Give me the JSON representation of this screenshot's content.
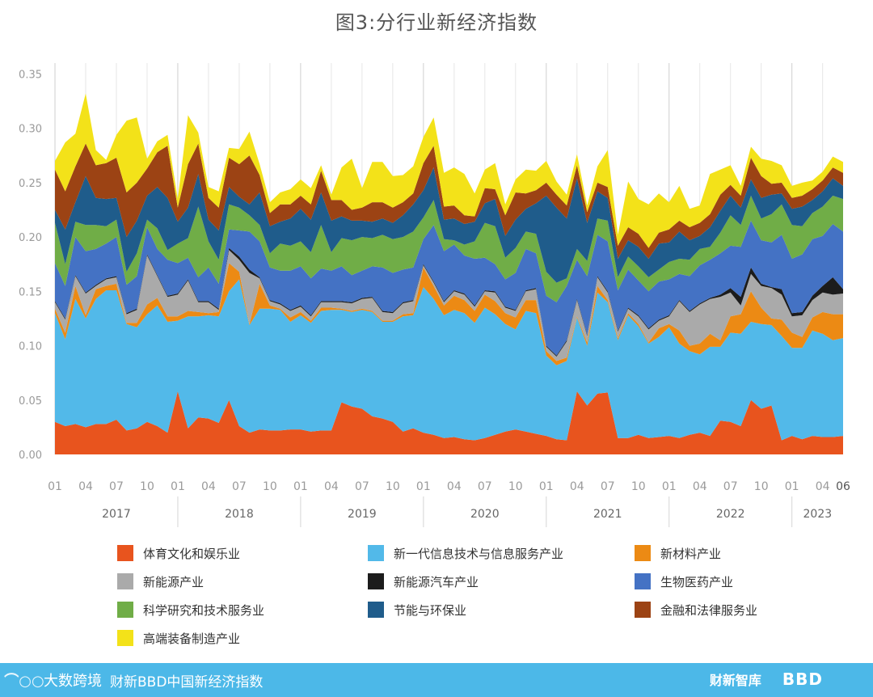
{
  "chart_data": {
    "type": "area",
    "stacked": true,
    "title": "图3:分行业新经济指数",
    "ylim": [
      0,
      0.36
    ],
    "yticks": [
      "0.00",
      "0.05",
      "0.10",
      "0.15",
      "0.20",
      "0.25",
      "0.30",
      "0.35"
    ],
    "grid": "vertical",
    "legend_position": "bottom",
    "x_start": "2017-01",
    "x_end": "2023-06",
    "month_tick_labels": [
      "01",
      "04",
      "07",
      "10",
      "01",
      "04",
      "07",
      "10",
      "01",
      "04",
      "07",
      "10",
      "01",
      "04",
      "07",
      "10",
      "01",
      "04",
      "07",
      "10",
      "01",
      "04",
      "07",
      "10",
      "01",
      "04",
      "06"
    ],
    "year_labels": [
      "2017",
      "2018",
      "2019",
      "2020",
      "2021",
      "2022",
      "2023"
    ],
    "series": [
      {
        "name": "体育文化和娱乐业",
        "color": "#E8541E",
        "values": [
          0.03,
          0.026,
          0.028,
          0.025,
          0.028,
          0.028,
          0.032,
          0.022,
          0.024,
          0.03,
          0.026,
          0.02,
          0.058,
          0.024,
          0.034,
          0.033,
          0.029,
          0.05,
          0.026,
          0.02,
          0.023,
          0.022,
          0.022,
          0.023,
          0.023,
          0.021,
          0.022,
          0.022,
          0.048,
          0.044,
          0.042,
          0.035,
          0.033,
          0.03,
          0.021,
          0.024,
          0.02,
          0.018,
          0.015,
          0.016,
          0.014,
          0.013,
          0.015,
          0.018,
          0.021,
          0.023,
          0.021,
          0.019,
          0.017,
          0.014,
          0.013,
          0.058,
          0.045,
          0.056,
          0.057,
          0.015,
          0.015,
          0.018,
          0.015,
          0.016,
          0.017,
          0.015,
          0.018,
          0.02,
          0.017,
          0.031,
          0.03,
          0.026,
          0.05,
          0.042,
          0.045,
          0.013,
          0.017,
          0.014,
          0.017,
          0.016,
          0.016,
          0.017
        ]
      },
      {
        "name": "新一代信息技术与信息服务产业",
        "color": "#52B9E9",
        "values": [
          0.1,
          0.08,
          0.115,
          0.1,
          0.115,
          0.123,
          0.119,
          0.098,
          0.093,
          0.099,
          0.111,
          0.102,
          0.065,
          0.103,
          0.093,
          0.095,
          0.098,
          0.1,
          0.135,
          0.099,
          0.111,
          0.112,
          0.111,
          0.099,
          0.105,
          0.1,
          0.11,
          0.111,
          0.085,
          0.087,
          0.091,
          0.096,
          0.089,
          0.092,
          0.106,
          0.104,
          0.134,
          0.125,
          0.113,
          0.117,
          0.116,
          0.108,
          0.12,
          0.111,
          0.099,
          0.092,
          0.111,
          0.111,
          0.074,
          0.068,
          0.073,
          0.068,
          0.055,
          0.093,
          0.083,
          0.09,
          0.113,
          0.1,
          0.087,
          0.092,
          0.1,
          0.087,
          0.077,
          0.072,
          0.082,
          0.068,
          0.082,
          0.085,
          0.072,
          0.078,
          0.074,
          0.096,
          0.081,
          0.084,
          0.097,
          0.095,
          0.089,
          0.09
        ]
      },
      {
        "name": "新材料产业",
        "color": "#EC8A14",
        "values": [
          0.004,
          0.006,
          0.012,
          0.003,
          0.009,
          0.004,
          0.006,
          0.001,
          0.004,
          0.009,
          0.007,
          0.005,
          0.004,
          0.005,
          0.004,
          0.002,
          0.004,
          0.026,
          0.007,
          0.001,
          0.023,
          0.003,
          0.001,
          0.004,
          0.003,
          0.002,
          0.003,
          0.002,
          0.001,
          0.001,
          0.001,
          0.001,
          0.001,
          0.001,
          0.002,
          0.002,
          0.018,
          0.012,
          0.009,
          0.013,
          0.012,
          0.011,
          0.012,
          0.012,
          0.01,
          0.011,
          0.01,
          0.012,
          0.004,
          0.004,
          0.003,
          0.001,
          0.003,
          0.006,
          0.002,
          0.002,
          0.002,
          0.002,
          0.001,
          0.008,
          0.003,
          0.012,
          0.005,
          0.01,
          0.012,
          0.006,
          0.015,
          0.018,
          0.028,
          0.015,
          0.006,
          0.015,
          0.014,
          0.01,
          0.012,
          0.02,
          0.024,
          0.022
        ]
      },
      {
        "name": "新能源产业",
        "color": "#AAAAAA",
        "values": [
          0.006,
          0.012,
          0.009,
          0.02,
          0.003,
          0.006,
          0.006,
          0.008,
          0.012,
          0.045,
          0.02,
          0.018,
          0.02,
          0.028,
          0.009,
          0.01,
          0.002,
          0.012,
          0.011,
          0.047,
          0.005,
          0.004,
          0.004,
          0.006,
          0.005,
          0.004,
          0.005,
          0.005,
          0.006,
          0.007,
          0.009,
          0.012,
          0.008,
          0.007,
          0.01,
          0.011,
          0.002,
          0.003,
          0.003,
          0.004,
          0.005,
          0.004,
          0.003,
          0.008,
          0.005,
          0.006,
          0.008,
          0.01,
          0.004,
          0.004,
          0.015,
          0.015,
          0.006,
          0.008,
          0.007,
          0.006,
          0.004,
          0.007,
          0.012,
          0.007,
          0.007,
          0.027,
          0.031,
          0.036,
          0.032,
          0.04,
          0.022,
          0.008,
          0.016,
          0.02,
          0.028,
          0.023,
          0.015,
          0.02,
          0.016,
          0.018,
          0.018,
          0.019
        ]
      },
      {
        "name": "新能源汽车产业",
        "color": "#1C1C1C",
        "values": [
          0.001,
          0.001,
          0.001,
          0.001,
          0.001,
          0.001,
          0.001,
          0.001,
          0.001,
          0.001,
          0.001,
          0.001,
          0.001,
          0.001,
          0.001,
          0.001,
          0.001,
          0.002,
          0.003,
          0.003,
          0.001,
          0.001,
          0.001,
          0.001,
          0.001,
          0.001,
          0.001,
          0.001,
          0.001,
          0.001,
          0.001,
          0.001,
          0.001,
          0.001,
          0.001,
          0.001,
          0.001,
          0.001,
          0.001,
          0.001,
          0.001,
          0.001,
          0.001,
          0.001,
          0.001,
          0.001,
          0.001,
          0.001,
          0.001,
          0.001,
          0.001,
          0.001,
          0.001,
          0.001,
          0.001,
          0.001,
          0.001,
          0.001,
          0.001,
          0.001,
          0.001,
          0.001,
          0.001,
          0.001,
          0.001,
          0.002,
          0.004,
          0.008,
          0.006,
          0.002,
          0.001,
          0.005,
          0.003,
          0.003,
          0.004,
          0.006,
          0.016,
          0.004
        ]
      },
      {
        "name": "生物医药产业",
        "color": "#4472C4",
        "values": [
          0.035,
          0.03,
          0.035,
          0.038,
          0.033,
          0.032,
          0.036,
          0.026,
          0.03,
          0.025,
          0.024,
          0.033,
          0.028,
          0.02,
          0.022,
          0.031,
          0.023,
          0.017,
          0.024,
          0.035,
          0.033,
          0.03,
          0.03,
          0.036,
          0.036,
          0.034,
          0.03,
          0.028,
          0.032,
          0.025,
          0.025,
          0.028,
          0.04,
          0.036,
          0.03,
          0.03,
          0.023,
          0.052,
          0.046,
          0.042,
          0.035,
          0.043,
          0.03,
          0.025,
          0.025,
          0.034,
          0.038,
          0.032,
          0.046,
          0.049,
          0.05,
          0.036,
          0.054,
          0.038,
          0.046,
          0.037,
          0.035,
          0.032,
          0.034,
          0.035,
          0.033,
          0.024,
          0.032,
          0.035,
          0.035,
          0.038,
          0.039,
          0.046,
          0.043,
          0.04,
          0.041,
          0.05,
          0.05,
          0.053,
          0.052,
          0.046,
          0.049,
          0.053
        ]
      },
      {
        "name": "科学研究和技术服务业",
        "color": "#70AD47",
        "values": [
          0.037,
          0.02,
          0.014,
          0.024,
          0.022,
          0.016,
          0.016,
          0.012,
          0.021,
          0.007,
          0.019,
          0.009,
          0.018,
          0.018,
          0.065,
          0.024,
          0.022,
          0.023,
          0.021,
          0.015,
          0.015,
          0.013,
          0.025,
          0.023,
          0.023,
          0.024,
          0.04,
          0.017,
          0.026,
          0.032,
          0.031,
          0.026,
          0.03,
          0.031,
          0.03,
          0.033,
          0.02,
          0.023,
          0.011,
          0.004,
          0.01,
          0.016,
          0.032,
          0.035,
          0.02,
          0.023,
          0.016,
          0.018,
          0.022,
          0.018,
          0.007,
          0.01,
          0.014,
          0.015,
          0.019,
          0.012,
          0.012,
          0.013,
          0.013,
          0.011,
          0.016,
          0.014,
          0.015,
          0.015,
          0.012,
          0.019,
          0.028,
          0.02,
          0.023,
          0.02,
          0.026,
          0.028,
          0.031,
          0.026,
          0.024,
          0.027,
          0.026,
          0.03
        ]
      },
      {
        "name": "节能与环保业",
        "color": "#1F5C8B",
        "values": [
          0.012,
          0.032,
          0.018,
          0.045,
          0.025,
          0.025,
          0.02,
          0.032,
          0.03,
          0.022,
          0.038,
          0.048,
          0.02,
          0.028,
          0.03,
          0.02,
          0.027,
          0.016,
          0.01,
          0.01,
          0.03,
          0.025,
          0.02,
          0.025,
          0.03,
          0.03,
          0.03,
          0.029,
          0.02,
          0.018,
          0.015,
          0.015,
          0.015,
          0.015,
          0.02,
          0.025,
          0.025,
          0.03,
          0.018,
          0.02,
          0.019,
          0.018,
          0.018,
          0.025,
          0.02,
          0.026,
          0.021,
          0.028,
          0.07,
          0.069,
          0.055,
          0.065,
          0.035,
          0.025,
          0.021,
          0.017,
          0.015,
          0.018,
          0.017,
          0.024,
          0.018,
          0.025,
          0.018,
          0.012,
          0.018,
          0.02,
          0.018,
          0.016,
          0.015,
          0.019,
          0.018,
          0.01,
          0.015,
          0.018,
          0.012,
          0.014,
          0.016,
          0.012
        ]
      },
      {
        "name": "金融和法律服务业",
        "color": "#9C4314",
        "values": [
          0.037,
          0.035,
          0.033,
          0.03,
          0.03,
          0.033,
          0.037,
          0.041,
          0.035,
          0.025,
          0.032,
          0.048,
          0.013,
          0.04,
          0.028,
          0.02,
          0.021,
          0.027,
          0.03,
          0.045,
          0.016,
          0.012,
          0.016,
          0.013,
          0.012,
          0.014,
          0.02,
          0.019,
          0.015,
          0.01,
          0.012,
          0.018,
          0.015,
          0.014,
          0.012,
          0.01,
          0.025,
          0.02,
          0.012,
          0.012,
          0.008,
          0.005,
          0.014,
          0.009,
          0.019,
          0.025,
          0.014,
          0.012,
          0.012,
          0.012,
          0.012,
          0.012,
          0.01,
          0.008,
          0.01,
          0.012,
          0.012,
          0.012,
          0.01,
          0.01,
          0.012,
          0.01,
          0.012,
          0.012,
          0.012,
          0.015,
          0.01,
          0.011,
          0.02,
          0.02,
          0.01,
          0.01,
          0.01,
          0.01,
          0.01,
          0.01,
          0.01,
          0.012
        ]
      },
      {
        "name": "高端装备制造产业",
        "color": "#F3E219",
        "values": [
          0.008,
          0.045,
          0.03,
          0.046,
          0.014,
          0.003,
          0.021,
          0.066,
          0.06,
          0.009,
          0.01,
          0.01,
          0.008,
          0.045,
          0.01,
          0.01,
          0.015,
          0.009,
          0.014,
          0.022,
          0.01,
          0.01,
          0.011,
          0.014,
          0.015,
          0.015,
          0.005,
          0.005,
          0.03,
          0.047,
          0.018,
          0.037,
          0.037,
          0.029,
          0.025,
          0.025,
          0.024,
          0.026,
          0.031,
          0.035,
          0.038,
          0.021,
          0.017,
          0.024,
          0.01,
          0.012,
          0.022,
          0.018,
          0.02,
          0.012,
          0.01,
          0.01,
          0.006,
          0.015,
          0.034,
          0.01,
          0.042,
          0.032,
          0.04,
          0.036,
          0.025,
          0.032,
          0.017,
          0.016,
          0.037,
          0.023,
          0.018,
          0.009,
          0.01,
          0.016,
          0.021,
          0.016,
          0.011,
          0.012,
          0.008,
          0.008,
          0.01,
          0.01
        ]
      }
    ]
  },
  "footer": {
    "logo_mark": "⌒○○",
    "brand_left": "大数跨境",
    "subtitle": "财新BBD中国新经济指数",
    "brand_right_1": "财新智库",
    "brand_right_2": "BBD"
  }
}
